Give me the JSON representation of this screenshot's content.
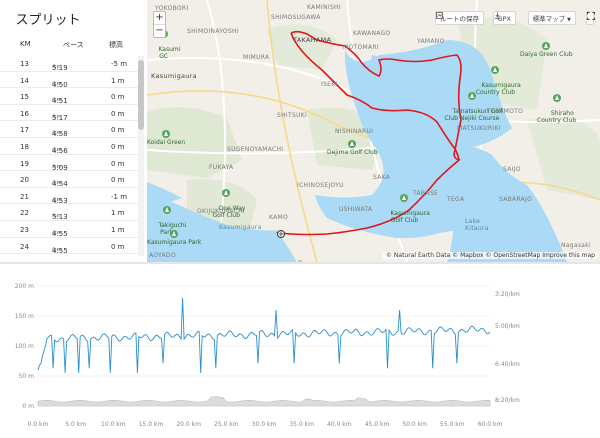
{
  "splits": {
    "title": "スプリット",
    "columns": {
      "km": "KM",
      "pace": "ペース",
      "elevation": "標高"
    },
    "pace_unit": "/km",
    "rows": [
      {
        "km": "13",
        "pace": "5:19",
        "elev": "-5 m"
      },
      {
        "km": "14",
        "pace": "4:50",
        "elev": "1 m"
      },
      {
        "km": "15",
        "pace": "4:51",
        "elev": "0 m"
      },
      {
        "km": "16",
        "pace": "5:17",
        "elev": "0 m"
      },
      {
        "km": "17",
        "pace": "4:58",
        "elev": "0 m"
      },
      {
        "km": "18",
        "pace": "4:56",
        "elev": "0 m"
      },
      {
        "km": "19",
        "pace": "5:09",
        "elev": "0 m"
      },
      {
        "km": "20",
        "pace": "4:54",
        "elev": "0 m"
      },
      {
        "km": "21",
        "pace": "4:53",
        "elev": "-1 m"
      },
      {
        "km": "22",
        "pace": "5:13",
        "elev": "1 m"
      },
      {
        "km": "23",
        "pace": "4:55",
        "elev": "1 m"
      },
      {
        "km": "24",
        "pace": "4:55",
        "elev": "0 m"
      }
    ]
  },
  "map": {
    "toolbar": {
      "save_route": "ルートの保存",
      "gpx": "GPX",
      "map_style": "標準マップ"
    },
    "zoom_in": "+",
    "zoom_out": "−",
    "attribution": "© Natural Earth Data © Mapbox © OpenStreetMap Improve this map",
    "places": {
      "takahama": "TAKAHAMA",
      "shimoinayoshi": "SHIMOINAYOSHI",
      "mimura": "MIMURA",
      "iseki": "ISEKI",
      "kawanago": "KAWANAGO",
      "motomari": "MOTOMARI",
      "yamano": "YAMANO",
      "kasumigaura": "Kasumigaura",
      "shitsuki": "SHITSUKI",
      "nishinarui": "NISHINARUI",
      "sugenoyamachi": "SUGENOYAMACHI",
      "fukaya": "FUKAYA",
      "ichinosejoyu": "ICHINOSEJOYU",
      "saka": "SAKA",
      "tabase": "TABASE",
      "okijukumachi": "OKIJUKUMACHI",
      "kamo": "KAMO",
      "ushiwata": "USHIWATA",
      "teramoto": "TERAMOTO",
      "matsukuriki": "MATSUKURIKI",
      "sabarajo": "SABARAJO",
      "saijo": "SAIJO",
      "aoyado": "AOYADO",
      "kasumigaura_lake": "Kasumigaura",
      "lake_kitaura": "Lake\nKitaura",
      "nagasaki": "Nagasaki",
      "tega": "TEGA",
      "yokobori": "YOKOBORI",
      "shimosugawa": "SHIMOSUGAWA",
      "kaminishi": "KAMINISHI"
    },
    "golf_clubs": {
      "daiya": "Daiya Green Club",
      "kasumigaura_cc": "Kasumigaura\nCountry Club",
      "tamatsukuri": "Tamatsukuri Golf\nClub Nejiki Course",
      "shiraho": "Shiraho\nCountry Club",
      "dejima": "Dejima Golf Club",
      "one_way": "One Way\nGolf Club",
      "kasumigaura_gc": "Kasumigaura\nGolf Club",
      "ushiku_green": "Ushiku Green",
      "takiguchi_park": "Takiguchi\nPark",
      "kasumigaura_park": "Kasumigaura Park",
      "partial_top": "Kasumi\nGC",
      "partial_mid": "Koidai Green"
    }
  },
  "chart": {
    "x_ticks": [
      "0.0 km",
      "5.0 km",
      "10.0 km",
      "15.0 km",
      "20.0 km",
      "25.0 km",
      "30.0 km",
      "35.0 km",
      "40.0 km",
      "45.0 km",
      "50.0 km",
      "55.0 km",
      "60.0 km"
    ],
    "left_ticks": [
      "200 m",
      "150 m",
      "100 m",
      "50 m",
      "0 m"
    ],
    "right_ticks": [
      "3:20/km",
      "5:00/km",
      "6:40/km",
      "8:20/km"
    ],
    "left_range": [
      0,
      200
    ],
    "x_range": [
      0,
      60
    ],
    "pace_color": "#2a8fd0",
    "elevation_color": "#bdbdbd"
  }
}
